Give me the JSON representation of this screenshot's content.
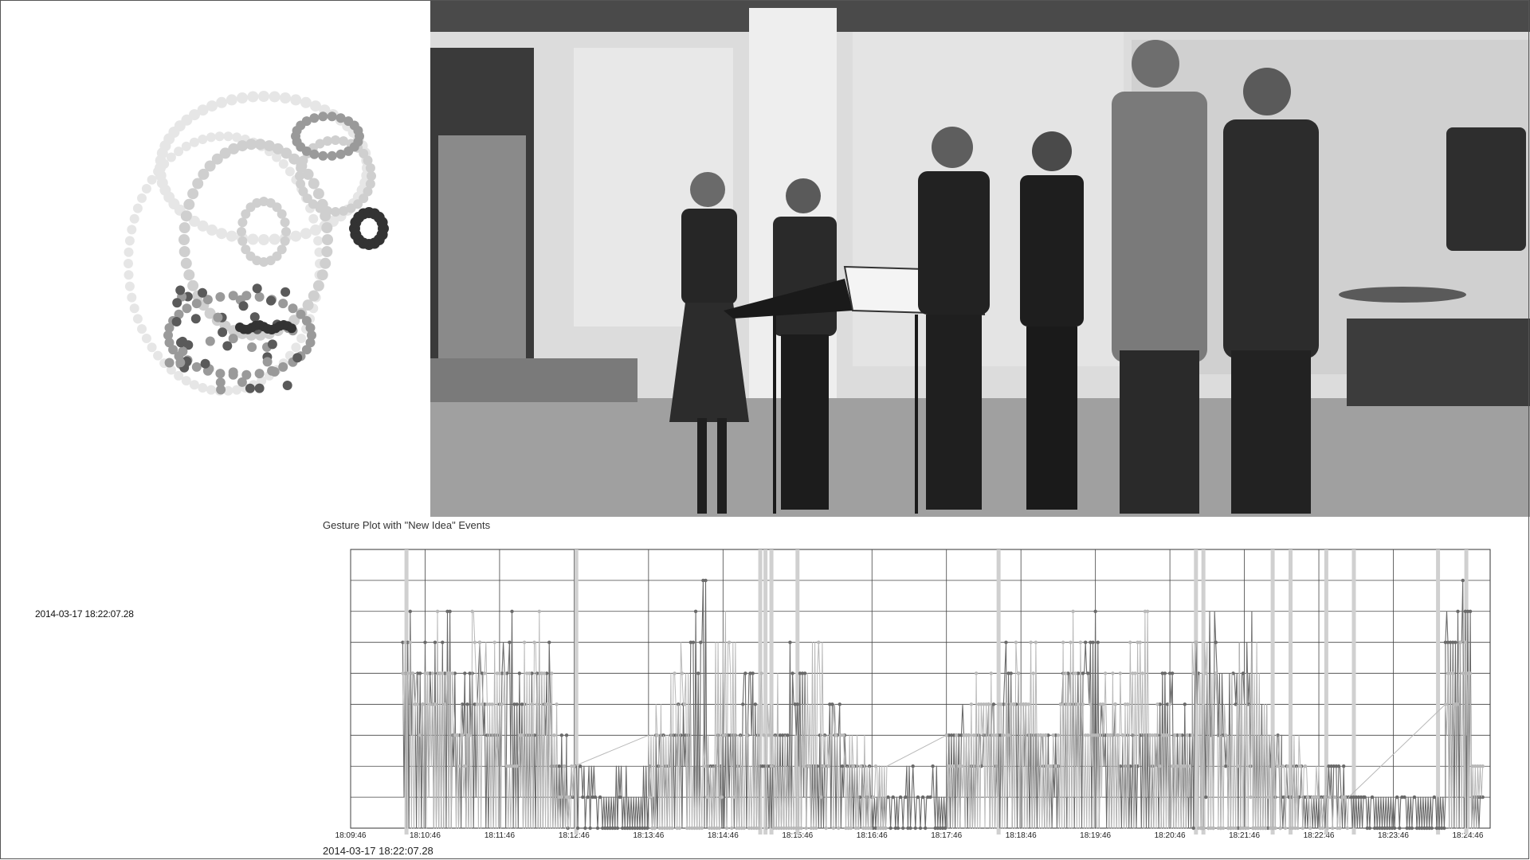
{
  "side_timestamp": "2014-03-17  18:22:07.28",
  "plot": {
    "title": "Gesture Plot with \"New Idea\" Events",
    "bottom_timestamp": "2014-03-17  18:22:07.28"
  },
  "chart_data": {
    "type": "line",
    "title": "Gesture Plot with \"New Idea\" Events",
    "x_tick_labels": [
      "18:09:46",
      "18:10:46",
      "18:11:46",
      "18:12:46",
      "18:13:46",
      "18:14:46",
      "18:15:46",
      "18:16:46",
      "18:17:46",
      "18:18:46",
      "18:19:46",
      "18:20:46",
      "18:21:46",
      "18:22:46",
      "18:23:46",
      "18:24:46"
    ],
    "xlim": [
      0,
      15.3
    ],
    "ylim": [
      0,
      9
    ],
    "y_gridlines": 9,
    "grid": true,
    "new_idea_events_minutes": [
      0.75,
      3.03,
      5.5,
      5.57,
      5.65,
      6.0,
      8.7,
      11.35,
      11.45,
      12.38,
      12.62,
      13.1,
      13.47,
      14.6,
      14.98
    ],
    "series": [
      {
        "color": "#6a6a6a",
        "segments": [
          {
            "start": 0.7,
            "end": 2.9,
            "levels": [
              7,
              6,
              7,
              5,
              6,
              4,
              7,
              5,
              6,
              3
            ]
          },
          {
            "start": 2.9,
            "end": 4.1,
            "levels": [
              2,
              2,
              1,
              2,
              1,
              2
            ]
          },
          {
            "start": 4.1,
            "end": 7.0,
            "levels": [
              3,
              4,
              8,
              3,
              4,
              5,
              3,
              4,
              6,
              3,
              4,
              3,
              2
            ]
          },
          {
            "start": 7.0,
            "end": 8.0,
            "levels": [
              2,
              1,
              2,
              1,
              2
            ]
          },
          {
            "start": 8.0,
            "end": 11.3,
            "levels": [
              4,
              3,
              4,
              6,
              4,
              3,
              5,
              7,
              4,
              3,
              4,
              5,
              4
            ]
          },
          {
            "start": 11.3,
            "end": 12.5,
            "levels": [
              6,
              7,
              5,
              7,
              4,
              3
            ]
          },
          {
            "start": 12.5,
            "end": 13.6,
            "levels": [
              2,
              1,
              2,
              1
            ]
          },
          {
            "start": 13.6,
            "end": 14.7,
            "levels": [
              1,
              1,
              1,
              1
            ]
          },
          {
            "start": 14.7,
            "end": 15.2,
            "levels": [
              7,
              8,
              1
            ]
          }
        ]
      },
      {
        "color": "#b8b8b8",
        "segments": [
          {
            "start": 0.7,
            "end": 3.0,
            "levels": [
              6,
              5,
              7,
              4,
              7,
              6,
              3,
              7,
              5,
              2
            ]
          },
          {
            "start": 4.0,
            "end": 7.2,
            "levels": [
              4,
              6,
              3,
              7,
              4,
              5,
              3,
              6,
              4,
              3,
              2
            ]
          },
          {
            "start": 8.0,
            "end": 11.3,
            "levels": [
              3,
              5,
              4,
              6,
              3,
              7,
              4,
              5,
              7,
              4,
              3
            ]
          },
          {
            "start": 11.3,
            "end": 13.4,
            "levels": [
              7,
              5,
              6,
              4,
              3,
              2,
              1
            ]
          },
          {
            "start": 14.7,
            "end": 15.2,
            "levels": [
              6,
              7,
              2
            ]
          }
        ]
      }
    ]
  },
  "touch_trace": {
    "marks_light": 260,
    "marks_dark": 40,
    "colors": {
      "lightest": "#e6e6e6",
      "light": "#cfcfcf",
      "mid": "#9a9a9a",
      "dark": "#5a5a5a",
      "darkest": "#333333"
    }
  },
  "photo": {
    "description_colors": {
      "wall": "#d6d6d6",
      "floor": "#9c9c9c",
      "pillar": "#e0e0e0",
      "dark_frame": "#3a3a3a",
      "people": "#2a2a2a"
    }
  }
}
